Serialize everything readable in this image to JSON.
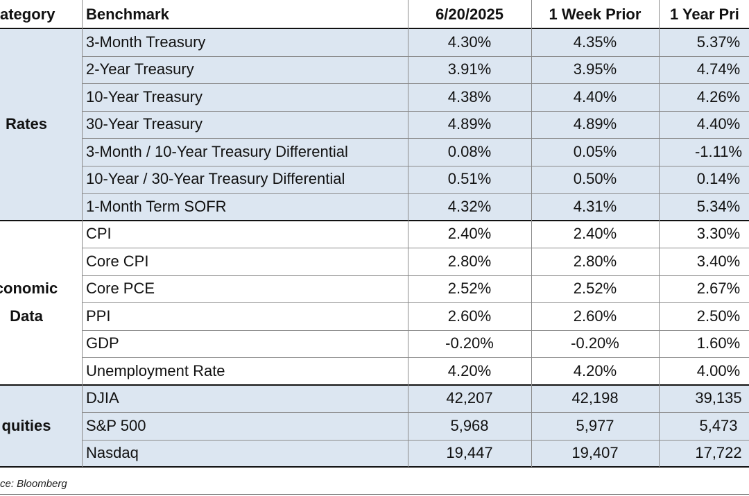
{
  "table": {
    "header": [
      "ategory",
      "Benchmark",
      "6/20/2025",
      "1 Week Prior",
      "1 Year Pri"
    ],
    "groups": [
      {
        "category": [
          "Rates"
        ],
        "rows": [
          [
            "3-Month Treasury",
            "4.30%",
            "4.35%",
            "5.37%"
          ],
          [
            "2-Year Treasury",
            "3.91%",
            "3.95%",
            "4.74%"
          ],
          [
            "10-Year Treasury",
            "4.38%",
            "4.40%",
            "4.26%"
          ],
          [
            "30-Year Treasury",
            "4.89%",
            "4.89%",
            "4.40%"
          ],
          [
            "3-Month / 10-Year Treasury Differential",
            "0.08%",
            "0.05%",
            "-1.11%"
          ],
          [
            "10-Year / 30-Year Treasury Differential",
            "0.51%",
            "0.50%",
            "0.14%"
          ],
          [
            "1-Month Term SOFR",
            "4.32%",
            "4.31%",
            "5.34%"
          ]
        ]
      },
      {
        "category": [
          "conomic",
          "Data"
        ],
        "rows": [
          [
            "CPI",
            "2.40%",
            "2.40%",
            "3.30%"
          ],
          [
            "Core CPI",
            "2.80%",
            "2.80%",
            "3.40%"
          ],
          [
            "Core PCE",
            "2.52%",
            "2.52%",
            "2.67%"
          ],
          [
            "PPI",
            "2.60%",
            "2.60%",
            "2.50%"
          ],
          [
            "GDP",
            "-0.20%",
            "-0.20%",
            "1.60%"
          ],
          [
            "Unemployment Rate",
            "4.20%",
            "4.20%",
            "4.00%"
          ]
        ]
      },
      {
        "category": [
          "quities"
        ],
        "rows": [
          [
            "DJIA",
            "42,207",
            "42,198",
            "39,135"
          ],
          [
            "S&P 500",
            "5,968",
            "5,977",
            "5,473"
          ],
          [
            "Nasdaq",
            "19,447",
            "19,407",
            "17,722"
          ]
        ]
      }
    ],
    "source": "ce: Bloomberg"
  }
}
